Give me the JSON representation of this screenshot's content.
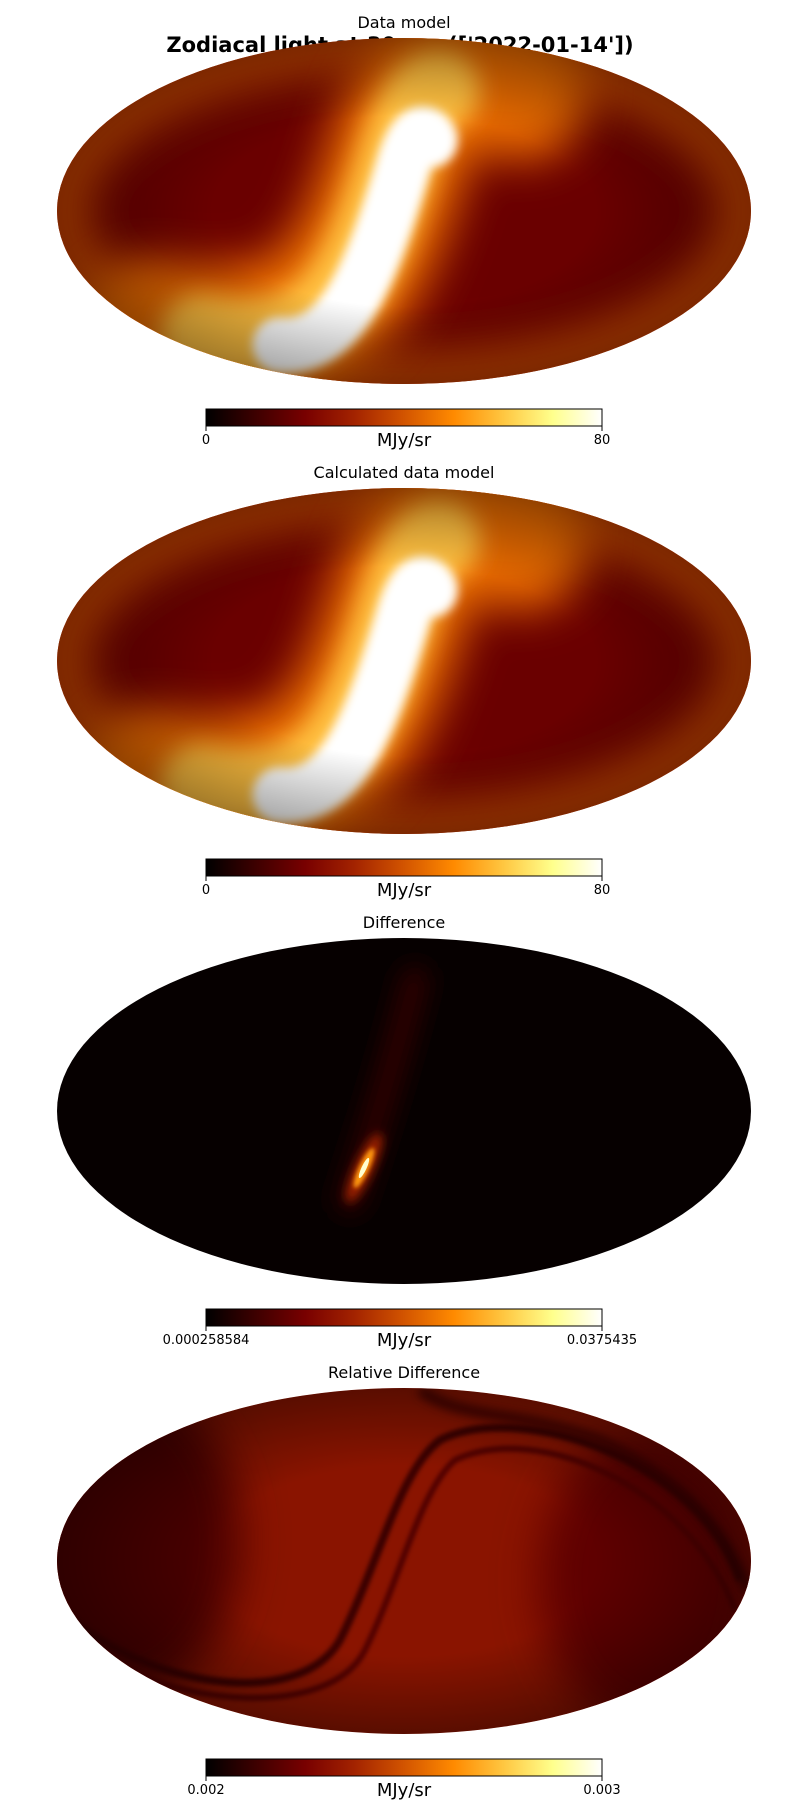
{
  "figure": {
    "title": "Zodiacal light at 30 µm (['2022-01-14'])",
    "colormap_colors": [
      "#000000",
      "#3d0000",
      "#780000",
      "#a32300",
      "#d25400",
      "#ff8a00",
      "#ffc640",
      "#ffff8c",
      "#ffffff"
    ]
  },
  "chart_data": [
    {
      "type": "heatmap",
      "projection": "mollweide",
      "title": "Data model",
      "colorbar": {
        "label": "MJy/sr",
        "min": "0",
        "max": "80",
        "range": [
          0,
          80
        ]
      },
      "colormap": "afmhot",
      "background_level": 0.22,
      "feature": "bright zodiacal band crossing the sky as an S-shaped curve, saturated near the bottom center"
    },
    {
      "type": "heatmap",
      "projection": "mollweide",
      "title": "Calculated data model",
      "colorbar": {
        "label": "MJy/sr",
        "min": "0",
        "max": "80",
        "range": [
          0,
          80
        ]
      },
      "colormap": "afmhot",
      "background_level": 0.22,
      "feature": "bright zodiacal band crossing the sky as an S-shaped curve, saturated near the bottom center"
    },
    {
      "type": "heatmap",
      "projection": "mollweide",
      "title": "Difference",
      "colorbar": {
        "label": "MJy/sr",
        "min": "0.000258584",
        "max": "0.0375435",
        "range": [
          0.000258584,
          0.0375435
        ]
      },
      "colormap": "afmhot",
      "background_level": 0.02,
      "feature": "near-zero everywhere except a small bright elongated spot below and left of center"
    },
    {
      "type": "heatmap",
      "projection": "mollweide",
      "title": "Relative Difference",
      "colorbar": {
        "label": "MJy/sr",
        "min": "0.002",
        "max": "0.003",
        "range": [
          0.002,
          0.003
        ]
      },
      "colormap": "afmhot",
      "background_level": 0.3,
      "feature": "dark red sky with faint dark arcs following the band"
    }
  ]
}
